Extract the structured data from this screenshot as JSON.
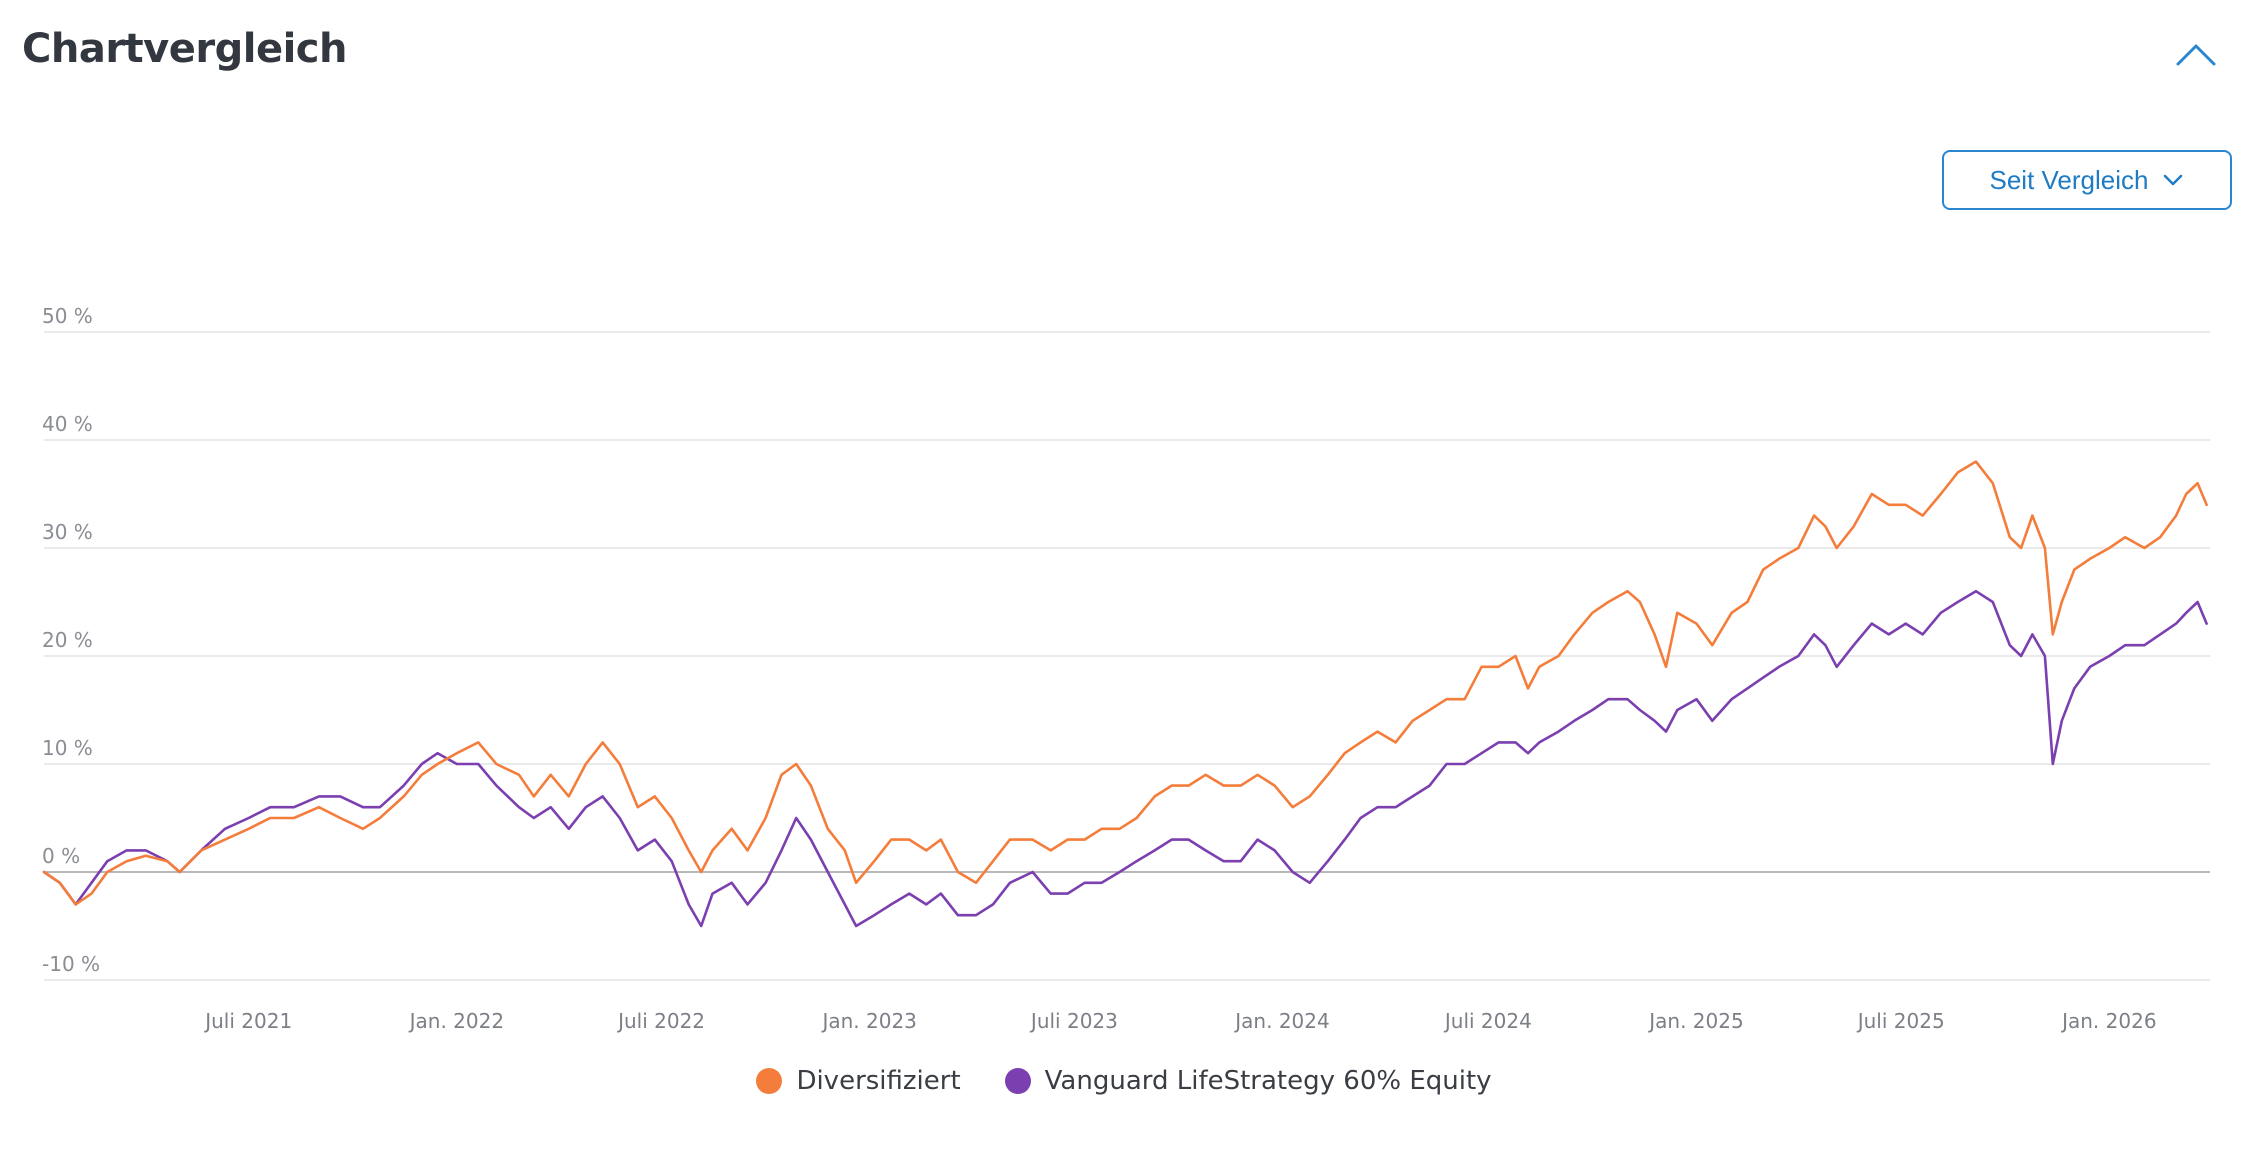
{
  "header": {
    "title": "Chartvergleich",
    "collapse_icon": "chevron-up-icon",
    "dropdown_icon": "chevron-down-icon"
  },
  "controls": {
    "range_label": "Seit Vergleich"
  },
  "colors": {
    "series_1": "#f47d3b",
    "series_2": "#7b3fb0",
    "accent": "#2a86cf",
    "grid": "#dedede",
    "zero_line": "#a0a0a0",
    "title": "#333740"
  },
  "chart_data": {
    "type": "line",
    "title": "",
    "xlabel": "",
    "ylabel": "",
    "ylim": [
      -10,
      50
    ],
    "xlim": [
      "2021-01-01",
      "2026-03-31"
    ],
    "y_ticks": [
      -10,
      0,
      10,
      20,
      30,
      40,
      50
    ],
    "y_tick_labels": [
      "-10 %",
      "0 %",
      "10 %",
      "20 %",
      "30 %",
      "40 %",
      "50 %"
    ],
    "x_ticks": [
      "2021-07-01",
      "2022-01-01",
      "2022-07-01",
      "2023-01-01",
      "2023-07-01",
      "2024-01-01",
      "2024-07-01",
      "2025-01-01",
      "2025-07-01",
      "2026-01-01"
    ],
    "x_tick_labels": [
      "Juli 2021",
      "Jan. 2022",
      "Juli 2022",
      "Jan. 2023",
      "Juli 2023",
      "Jan. 2024",
      "Juli 2024",
      "Jan. 2025",
      "Juli 2025",
      "Jan. 2026"
    ],
    "grid": true,
    "legend_position": "bottom",
    "series": [
      {
        "name": "Diversifiziert",
        "points": [
          [
            "2021-01-01",
            0
          ],
          [
            "2021-01-15",
            -1
          ],
          [
            "2021-01-29",
            -3
          ],
          [
            "2021-02-12",
            -2
          ],
          [
            "2021-02-26",
            0
          ],
          [
            "2021-03-15",
            1
          ],
          [
            "2021-04-01",
            1.5
          ],
          [
            "2021-04-20",
            1
          ],
          [
            "2021-05-01",
            0
          ],
          [
            "2021-05-20",
            2
          ],
          [
            "2021-06-10",
            3
          ],
          [
            "2021-07-01",
            4
          ],
          [
            "2021-07-20",
            5
          ],
          [
            "2021-08-10",
            5
          ],
          [
            "2021-09-01",
            6
          ],
          [
            "2021-09-20",
            5
          ],
          [
            "2021-10-10",
            4
          ],
          [
            "2021-10-25",
            5
          ],
          [
            "2021-11-15",
            7
          ],
          [
            "2021-12-01",
            9
          ],
          [
            "2021-12-15",
            10
          ],
          [
            "2022-01-01",
            11
          ],
          [
            "2022-01-20",
            12
          ],
          [
            "2022-02-05",
            10
          ],
          [
            "2022-02-25",
            9
          ],
          [
            "2022-03-10",
            7
          ],
          [
            "2022-03-25",
            9
          ],
          [
            "2022-04-10",
            7
          ],
          [
            "2022-04-25",
            10
          ],
          [
            "2022-05-10",
            12
          ],
          [
            "2022-05-25",
            10
          ],
          [
            "2022-06-10",
            6
          ],
          [
            "2022-06-25",
            7
          ],
          [
            "2022-07-10",
            5
          ],
          [
            "2022-07-25",
            2
          ],
          [
            "2022-08-05",
            0
          ],
          [
            "2022-08-15",
            2
          ],
          [
            "2022-09-01",
            4
          ],
          [
            "2022-09-15",
            2
          ],
          [
            "2022-10-01",
            5
          ],
          [
            "2022-10-15",
            9
          ],
          [
            "2022-10-28",
            10
          ],
          [
            "2022-11-10",
            8
          ],
          [
            "2022-11-25",
            4
          ],
          [
            "2022-12-10",
            2
          ],
          [
            "2022-12-20",
            -1
          ],
          [
            "2023-01-05",
            1
          ],
          [
            "2023-01-20",
            3
          ],
          [
            "2023-02-05",
            3
          ],
          [
            "2023-02-20",
            2
          ],
          [
            "2023-03-05",
            3
          ],
          [
            "2023-03-20",
            0
          ],
          [
            "2023-04-05",
            -1
          ],
          [
            "2023-04-20",
            1
          ],
          [
            "2023-05-05",
            3
          ],
          [
            "2023-05-25",
            3
          ],
          [
            "2023-06-10",
            2
          ],
          [
            "2023-06-25",
            3
          ],
          [
            "2023-07-10",
            3
          ],
          [
            "2023-07-25",
            4
          ],
          [
            "2023-08-10",
            4
          ],
          [
            "2023-08-25",
            5
          ],
          [
            "2023-09-10",
            7
          ],
          [
            "2023-09-25",
            8
          ],
          [
            "2023-10-10",
            8
          ],
          [
            "2023-10-25",
            9
          ],
          [
            "2023-11-10",
            8
          ],
          [
            "2023-11-25",
            8
          ],
          [
            "2023-12-10",
            9
          ],
          [
            "2023-12-25",
            8
          ],
          [
            "2024-01-10",
            6
          ],
          [
            "2024-01-25",
            7
          ],
          [
            "2024-02-10",
            9
          ],
          [
            "2024-02-25",
            11
          ],
          [
            "2024-03-10",
            12
          ],
          [
            "2024-03-25",
            13
          ],
          [
            "2024-04-10",
            12
          ],
          [
            "2024-04-25",
            14
          ],
          [
            "2024-05-10",
            15
          ],
          [
            "2024-05-25",
            16
          ],
          [
            "2024-06-10",
            16
          ],
          [
            "2024-06-25",
            19
          ],
          [
            "2024-07-10",
            19
          ],
          [
            "2024-07-25",
            20
          ],
          [
            "2024-08-05",
            17
          ],
          [
            "2024-08-15",
            19
          ],
          [
            "2024-09-01",
            20
          ],
          [
            "2024-09-15",
            22
          ],
          [
            "2024-10-01",
            24
          ],
          [
            "2024-10-15",
            25
          ],
          [
            "2024-11-01",
            26
          ],
          [
            "2024-11-12",
            25
          ],
          [
            "2024-11-25",
            22
          ],
          [
            "2024-12-05",
            19
          ],
          [
            "2024-12-15",
            24
          ],
          [
            "2025-01-01",
            23
          ],
          [
            "2025-01-15",
            21
          ],
          [
            "2025-02-01",
            24
          ],
          [
            "2025-02-15",
            25
          ],
          [
            "2025-03-01",
            28
          ],
          [
            "2025-03-15",
            29
          ],
          [
            "2025-04-01",
            30
          ],
          [
            "2025-04-15",
            33
          ],
          [
            "2025-04-25",
            32
          ],
          [
            "2025-05-05",
            30
          ],
          [
            "2025-05-20",
            32
          ],
          [
            "2025-06-05",
            35
          ],
          [
            "2025-06-20",
            34
          ],
          [
            "2025-07-05",
            34
          ],
          [
            "2025-07-20",
            33
          ],
          [
            "2025-08-05",
            35
          ],
          [
            "2025-08-20",
            37
          ],
          [
            "2025-09-05",
            38
          ],
          [
            "2025-09-20",
            36
          ],
          [
            "2025-10-05",
            31
          ],
          [
            "2025-10-15",
            30
          ],
          [
            "2025-10-25",
            33
          ],
          [
            "2025-11-05",
            30
          ],
          [
            "2025-11-12",
            22
          ],
          [
            "2025-11-20",
            25
          ],
          [
            "2025-12-01",
            28
          ],
          [
            "2025-12-15",
            29
          ],
          [
            "2026-01-01",
            30
          ],
          [
            "2026-01-15",
            31
          ],
          [
            "2026-02-01",
            30
          ],
          [
            "2026-02-15",
            31
          ],
          [
            "2026-03-01",
            33
          ],
          [
            "2026-03-10",
            35
          ],
          [
            "2026-03-20",
            36
          ],
          [
            "2026-03-28",
            34
          ]
        ]
      },
      {
        "name": "Vanguard LifeStrategy 60% Equity",
        "points": [
          [
            "2021-01-01",
            0
          ],
          [
            "2021-01-15",
            -1
          ],
          [
            "2021-01-29",
            -3
          ],
          [
            "2021-02-12",
            -1
          ],
          [
            "2021-02-26",
            1
          ],
          [
            "2021-03-15",
            2
          ],
          [
            "2021-04-01",
            2
          ],
          [
            "2021-04-20",
            1
          ],
          [
            "2021-05-01",
            0
          ],
          [
            "2021-05-20",
            2
          ],
          [
            "2021-06-10",
            4
          ],
          [
            "2021-07-01",
            5
          ],
          [
            "2021-07-20",
            6
          ],
          [
            "2021-08-10",
            6
          ],
          [
            "2021-09-01",
            7
          ],
          [
            "2021-09-20",
            7
          ],
          [
            "2021-10-10",
            6
          ],
          [
            "2021-10-25",
            6
          ],
          [
            "2021-11-15",
            8
          ],
          [
            "2021-12-01",
            10
          ],
          [
            "2021-12-15",
            11
          ],
          [
            "2022-01-01",
            10
          ],
          [
            "2022-01-20",
            10
          ],
          [
            "2022-02-05",
            8
          ],
          [
            "2022-02-25",
            6
          ],
          [
            "2022-03-10",
            5
          ],
          [
            "2022-03-25",
            6
          ],
          [
            "2022-04-10",
            4
          ],
          [
            "2022-04-25",
            6
          ],
          [
            "2022-05-10",
            7
          ],
          [
            "2022-05-25",
            5
          ],
          [
            "2022-06-10",
            2
          ],
          [
            "2022-06-25",
            3
          ],
          [
            "2022-07-10",
            1
          ],
          [
            "2022-07-25",
            -3
          ],
          [
            "2022-08-05",
            -5
          ],
          [
            "2022-08-15",
            -2
          ],
          [
            "2022-09-01",
            -1
          ],
          [
            "2022-09-15",
            -3
          ],
          [
            "2022-10-01",
            -1
          ],
          [
            "2022-10-15",
            2
          ],
          [
            "2022-10-28",
            5
          ],
          [
            "2022-11-10",
            3
          ],
          [
            "2022-11-25",
            0
          ],
          [
            "2022-12-10",
            -3
          ],
          [
            "2022-12-20",
            -5
          ],
          [
            "2023-01-05",
            -4
          ],
          [
            "2023-01-20",
            -3
          ],
          [
            "2023-02-05",
            -2
          ],
          [
            "2023-02-20",
            -3
          ],
          [
            "2023-03-05",
            -2
          ],
          [
            "2023-03-20",
            -4
          ],
          [
            "2023-04-05",
            -4
          ],
          [
            "2023-04-20",
            -3
          ],
          [
            "2023-05-05",
            -1
          ],
          [
            "2023-05-25",
            0
          ],
          [
            "2023-06-10",
            -2
          ],
          [
            "2023-06-25",
            -2
          ],
          [
            "2023-07-10",
            -1
          ],
          [
            "2023-07-25",
            -1
          ],
          [
            "2023-08-10",
            0
          ],
          [
            "2023-08-25",
            1
          ],
          [
            "2023-09-10",
            2
          ],
          [
            "2023-09-25",
            3
          ],
          [
            "2023-10-10",
            3
          ],
          [
            "2023-10-25",
            2
          ],
          [
            "2023-11-10",
            1
          ],
          [
            "2023-11-25",
            1
          ],
          [
            "2023-12-10",
            3
          ],
          [
            "2023-12-25",
            2
          ],
          [
            "2024-01-10",
            0
          ],
          [
            "2024-01-25",
            -1
          ],
          [
            "2024-02-10",
            1
          ],
          [
            "2024-02-25",
            3
          ],
          [
            "2024-03-10",
            5
          ],
          [
            "2024-03-25",
            6
          ],
          [
            "2024-04-10",
            6
          ],
          [
            "2024-04-25",
            7
          ],
          [
            "2024-05-10",
            8
          ],
          [
            "2024-05-25",
            10
          ],
          [
            "2024-06-10",
            10
          ],
          [
            "2024-06-25",
            11
          ],
          [
            "2024-07-10",
            12
          ],
          [
            "2024-07-25",
            12
          ],
          [
            "2024-08-05",
            11
          ],
          [
            "2024-08-15",
            12
          ],
          [
            "2024-09-01",
            13
          ],
          [
            "2024-09-15",
            14
          ],
          [
            "2024-10-01",
            15
          ],
          [
            "2024-10-15",
            16
          ],
          [
            "2024-11-01",
            16
          ],
          [
            "2024-11-12",
            15
          ],
          [
            "2024-11-25",
            14
          ],
          [
            "2024-12-05",
            13
          ],
          [
            "2024-12-15",
            15
          ],
          [
            "2025-01-01",
            16
          ],
          [
            "2025-01-15",
            14
          ],
          [
            "2025-02-01",
            16
          ],
          [
            "2025-02-15",
            17
          ],
          [
            "2025-03-01",
            18
          ],
          [
            "2025-03-15",
            19
          ],
          [
            "2025-04-01",
            20
          ],
          [
            "2025-04-15",
            22
          ],
          [
            "2025-04-25",
            21
          ],
          [
            "2025-05-05",
            19
          ],
          [
            "2025-05-20",
            21
          ],
          [
            "2025-06-05",
            23
          ],
          [
            "2025-06-20",
            22
          ],
          [
            "2025-07-05",
            23
          ],
          [
            "2025-07-20",
            22
          ],
          [
            "2025-08-05",
            24
          ],
          [
            "2025-08-20",
            25
          ],
          [
            "2025-09-05",
            26
          ],
          [
            "2025-09-20",
            25
          ],
          [
            "2025-10-05",
            21
          ],
          [
            "2025-10-15",
            20
          ],
          [
            "2025-10-25",
            22
          ],
          [
            "2025-11-05",
            20
          ],
          [
            "2025-11-12",
            10
          ],
          [
            "2025-11-20",
            14
          ],
          [
            "2025-12-01",
            17
          ],
          [
            "2025-12-15",
            19
          ],
          [
            "2026-01-01",
            20
          ],
          [
            "2026-01-15",
            21
          ],
          [
            "2026-02-01",
            21
          ],
          [
            "2026-02-15",
            22
          ],
          [
            "2026-03-01",
            23
          ],
          [
            "2026-03-10",
            24
          ],
          [
            "2026-03-20",
            25
          ],
          [
            "2026-03-28",
            23
          ]
        ]
      }
    ]
  }
}
